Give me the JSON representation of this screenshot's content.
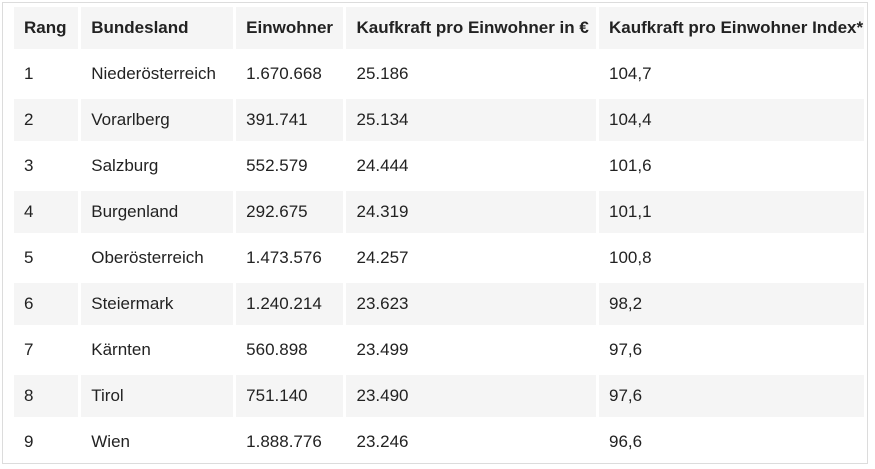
{
  "table": {
    "headers": [
      "Rang",
      "Bundesland",
      "Einwohner",
      "Kaufkraft pro Einwohner in €",
      "Kaufkraft pro Einwohner Index*"
    ],
    "rows": [
      [
        "1",
        "Niederösterreich",
        "1.670.668",
        "25.186",
        "104,7"
      ],
      [
        "2",
        "Vorarlberg",
        "391.741",
        "25.134",
        "104,4"
      ],
      [
        "3",
        "Salzburg",
        "552.579",
        "24.444",
        "101,6"
      ],
      [
        "4",
        "Burgenland",
        "292.675",
        "24.319",
        "101,1"
      ],
      [
        "5",
        "Oberösterreich",
        "1.473.576",
        "24.257",
        "100,8"
      ],
      [
        "6",
        "Steiermark",
        "1.240.214",
        "23.623",
        "98,2"
      ],
      [
        "7",
        "Kärnten",
        "560.898",
        "23.499",
        "97,6"
      ],
      [
        "8",
        "Tirol",
        "751.140",
        "23.490",
        "97,6"
      ],
      [
        "9",
        "Wien",
        "1.888.776",
        "23.246",
        "96,6"
      ]
    ]
  },
  "colors": {
    "shaded_row": "#f5f5f5",
    "border": "#dcdcdc",
    "text": "#222222"
  }
}
